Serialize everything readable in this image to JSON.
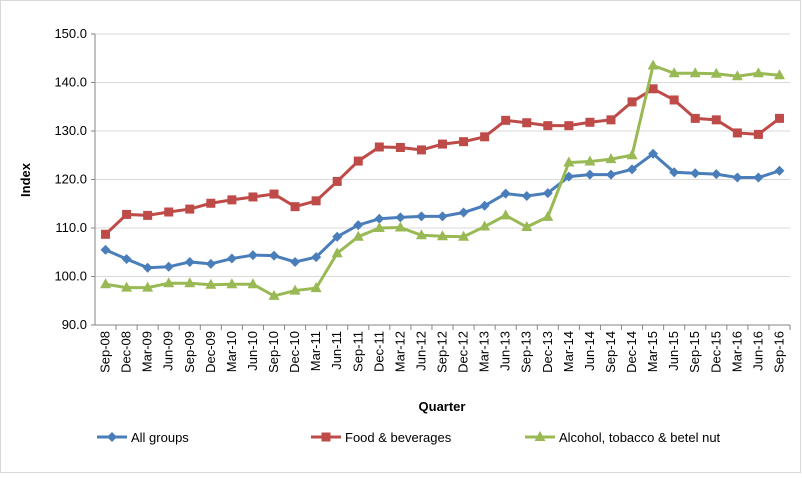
{
  "chart_data": {
    "type": "line",
    "x_label": "Quarter",
    "y_label": "Index",
    "categories": [
      "Sep-08",
      "Dec-08",
      "Mar-09",
      "Jun-09",
      "Sep-09",
      "Dec-09",
      "Mar-10",
      "Jun-10",
      "Sep-10",
      "Dec-10",
      "Mar-11",
      "Jun-11",
      "Sep-11",
      "Dec-11",
      "Mar-12",
      "Jun-12",
      "Sep-12",
      "Dec-12",
      "Mar-13",
      "Jun-13",
      "Sep-13",
      "Dec-13",
      "Mar-14",
      "Jun-14",
      "Sep-14",
      "Dec-14",
      "Mar-15",
      "Jun-15",
      "Sep-15",
      "Dec-15",
      "Mar-16",
      "Jun-16",
      "Sep-16"
    ],
    "series": [
      {
        "name": "All groups",
        "color": "#4a7ebb",
        "marker": "diamond",
        "values": [
          105.5,
          103.6,
          101.8,
          102.0,
          103.0,
          102.6,
          103.7,
          104.4,
          104.3,
          103.0,
          104.0,
          108.2,
          110.6,
          111.9,
          112.2,
          112.4,
          112.4,
          113.2,
          114.6,
          117.1,
          116.6,
          117.2,
          120.6,
          121.0,
          121.0,
          122.1,
          125.3,
          121.5,
          121.3,
          121.1,
          120.4,
          120.4,
          121.8
        ]
      },
      {
        "name": "Food & beverages",
        "color": "#be4b48",
        "marker": "square",
        "values": [
          108.7,
          112.8,
          112.6,
          113.3,
          113.9,
          115.1,
          115.8,
          116.4,
          117.0,
          114.4,
          115.6,
          119.6,
          123.8,
          126.7,
          126.6,
          126.1,
          127.3,
          127.8,
          128.8,
          132.2,
          131.7,
          131.1,
          131.1,
          131.8,
          132.3,
          136.0,
          138.7,
          136.4,
          132.6,
          132.3,
          129.6,
          129.3,
          132.6
        ]
      },
      {
        "name": "Alcohol, tobacco & betel nut",
        "color": "#98b954",
        "marker": "triangle",
        "values": [
          98.4,
          97.7,
          97.7,
          98.6,
          98.6,
          98.3,
          98.4,
          98.4,
          96.0,
          97.1,
          97.6,
          104.8,
          108.2,
          110.0,
          110.1,
          108.5,
          108.3,
          108.2,
          110.3,
          112.6,
          110.2,
          112.3,
          123.5,
          123.7,
          124.2,
          125.0,
          143.5,
          141.9,
          141.9,
          141.8,
          141.3,
          141.9,
          141.5
        ]
      }
    ],
    "ylim": [
      90,
      150
    ],
    "yticks": [
      {
        "value": 90,
        "label": "90.0"
      },
      {
        "value": 100,
        "label": "100.0"
      },
      {
        "value": 110,
        "label": "110.0"
      },
      {
        "value": 120,
        "label": "120.0"
      },
      {
        "value": 130,
        "label": "130.0"
      },
      {
        "value": 140,
        "label": "140.0"
      },
      {
        "value": 150,
        "label": "150.0"
      }
    ],
    "grid": true,
    "legend": "bottom"
  }
}
